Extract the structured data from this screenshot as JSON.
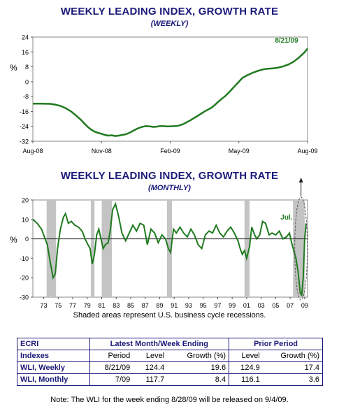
{
  "chart_data": [
    {
      "type": "line",
      "title": "WEEKLY LEADING INDEX, GROWTH RATE",
      "subtitle": "(WEEKLY)",
      "ylabel": "%",
      "ylim": [
        -32,
        24
      ],
      "yticks": [
        "24",
        "16",
        "8",
        "0",
        "-8",
        "-16",
        "-24",
        "-32"
      ],
      "xticks": [
        "Aug-08",
        "Nov-08",
        "Feb-09",
        "May-09",
        "Aug-09"
      ],
      "annotation": "8/21/09",
      "color": "#1f7a1f",
      "series": [
        {
          "x": [
            0,
            0.5,
            1,
            1.3,
            1.6,
            1.9,
            2.2,
            2.5,
            2.8,
            3.0,
            3.2,
            3.4,
            3.6,
            3.8,
            4.0,
            4.2,
            4.4,
            4.6,
            4.8,
            5.0,
            5.2,
            5.4,
            5.6,
            5.8,
            6.0,
            6.2,
            6.4,
            6.6,
            6.8,
            7.0,
            7.2,
            7.4,
            7.6,
            7.8,
            8.0,
            8.2,
            8.4,
            8.6,
            8.8,
            9.0,
            9.2,
            9.4,
            9.6,
            9.8,
            10.0,
            10.2,
            10.4,
            10.6,
            10.8,
            11.0,
            11.2,
            11.4,
            11.6,
            11.8,
            12.0
          ],
          "values": [
            -11.8,
            -11.8,
            -11.9,
            -12.3,
            -13.0,
            -14.2,
            -15.8,
            -18.0,
            -20.5,
            -22.5,
            -24.3,
            -25.8,
            -26.8,
            -27.5,
            -28.0,
            -28.6,
            -29.0,
            -28.8,
            -29.2,
            -29.0,
            -28.6,
            -28.3,
            -27.6,
            -26.6,
            -25.6,
            -24.8,
            -24.2,
            -23.9,
            -24.0,
            -24.3,
            -24.2,
            -23.9,
            -23.9,
            -24.0,
            -24.0,
            -23.9,
            -23.8,
            -23.3,
            -22.6,
            -21.6,
            -20.6,
            -19.5,
            -18.4,
            -17.2,
            -16.0,
            -15.0,
            -14.0,
            -12.5,
            -10.8,
            -9.2,
            -7.8,
            -6.0,
            -4.0,
            -2.0,
            0.0
          ]
        }
      ],
      "series_tail": {
        "x": [
          12.2,
          12.5,
          12.8,
          13.1,
          13.4,
          13.7,
          14.0,
          14.3,
          14.6,
          14.9,
          15.2,
          15.5,
          15.8,
          16.0
        ],
        "values": [
          2.0,
          3.5,
          4.8,
          5.8,
          6.6,
          7.0,
          7.2,
          7.6,
          8.3,
          9.3,
          10.8,
          13.0,
          15.6,
          17.8
        ]
      },
      "x_units": "weeks index (Aug-08 to Aug-09)"
    },
    {
      "type": "line",
      "title": "WEEKLY LEADING INDEX, GROWTH RATE",
      "subtitle": "(MONTHLY)",
      "ylabel": "%",
      "ylim": [
        -30,
        20
      ],
      "yticks": [
        "20",
        "10",
        "0",
        "-10",
        "-20",
        "-30"
      ],
      "xticks": [
        "73",
        "75",
        "77",
        "79",
        "81",
        "83",
        "85",
        "87",
        "89",
        "91",
        "93",
        "95",
        "97",
        "99",
        "01",
        "03",
        "05",
        "07",
        "09"
      ],
      "annotation": "Jul.",
      "recessions": [
        [
          1973.9,
          1975.2
        ],
        [
          1980.0,
          1980.5
        ],
        [
          1981.5,
          1982.9
        ],
        [
          1990.5,
          1991.2
        ],
        [
          2001.2,
          2001.9
        ],
        [
          2007.9,
          2009.5
        ]
      ],
      "caption": "Shaded areas represent U.S. business cycle recessions.",
      "color": "#1f7a1f"
    }
  ],
  "table": {
    "col_ecri": "ECRI",
    "col_indexes": "Indexes",
    "latest_header": "Latest Month/Week Ending",
    "prior_header": "Prior Period",
    "sub_period": "Period",
    "sub_level": "Level",
    "sub_growth": "Growth (%)",
    "sub_level2": "Level",
    "sub_growth2": "Growth (%)",
    "rows": [
      {
        "name": "WLI, Weekly",
        "period": "8/21/09",
        "level": "124.4",
        "growth": "19.6",
        "prior_level": "124.9",
        "prior_growth": "17.4"
      },
      {
        "name": "WLI, Monthly",
        "period": "7/09",
        "level": "117.7",
        "growth": "8.4",
        "prior_level": "116.1",
        "prior_growth": "3.6"
      }
    ]
  },
  "note": "Note: The WLI for the week ending 8/28/09 will be released on 9/4/09."
}
